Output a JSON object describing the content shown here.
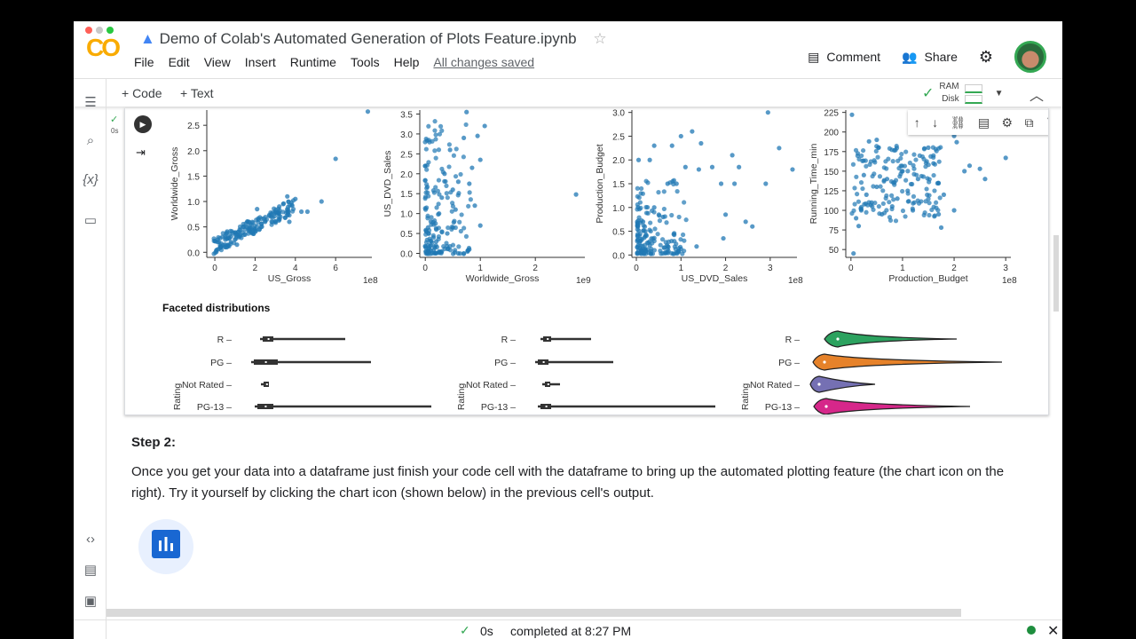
{
  "window": {
    "title": "Demo of Colab's Automated Generation of Plots Feature.ipynb"
  },
  "menu": [
    "File",
    "Edit",
    "View",
    "Insert",
    "Runtime",
    "Tools",
    "Help"
  ],
  "saved_status": "All changes saved",
  "header": {
    "comment": "Comment",
    "share": "Share"
  },
  "toolbar": {
    "add_code": "+ Code",
    "add_text": "+ Text",
    "ram": "RAM",
    "disk": "Disk"
  },
  "cell": {
    "exec_time": "0s"
  },
  "section_title": "Faceted distributions",
  "chart_data": [
    {
      "type": "scatter",
      "xlabel": "US_Gross",
      "ylabel": "Worldwide_Gross",
      "x_offset_label": "1e8",
      "xticks": [
        0,
        2,
        4,
        6
      ],
      "yticks": [
        0.0,
        0.5,
        1.0,
        1.5,
        2.0,
        2.5
      ],
      "xlim": [
        -0.4,
        7.8
      ],
      "ylim": [
        -0.1,
        2.8
      ],
      "points": [
        [
          0.1,
          0.05
        ],
        [
          0.3,
          0.1
        ],
        [
          0.5,
          0.15
        ],
        [
          0.8,
          0.2
        ],
        [
          1,
          0.25
        ],
        [
          1.2,
          0.3
        ],
        [
          1.5,
          0.35
        ],
        [
          1.8,
          0.4
        ],
        [
          2,
          0.45
        ],
        [
          2.3,
          0.5
        ],
        [
          2.5,
          0.6
        ],
        [
          2.8,
          0.7
        ],
        [
          3,
          0.8
        ],
        [
          3.2,
          0.9
        ],
        [
          3.4,
          0.95
        ],
        [
          3.6,
          1.1
        ],
        [
          4,
          1.05
        ],
        [
          4.3,
          0.8
        ],
        [
          4.6,
          0.8
        ],
        [
          5.3,
          1.0
        ],
        [
          6,
          1.84
        ],
        [
          7.6,
          2.77
        ],
        [
          0.2,
          0.2
        ],
        [
          0.6,
          0.1
        ],
        [
          1.4,
          0.5
        ],
        [
          2.1,
          0.85
        ],
        [
          1.1,
          0.15
        ],
        [
          3.7,
          0.6
        ]
      ]
    },
    {
      "type": "scatter",
      "xlabel": "Worldwide_Gross",
      "ylabel": "US_DVD_Sales",
      "x_offset_label": "1e9",
      "xticks": [
        0,
        1,
        2
      ],
      "yticks": [
        0.0,
        0.5,
        1.0,
        1.5,
        2.0,
        2.5,
        3.0,
        3.5
      ],
      "xlim": [
        -0.1,
        2.9
      ],
      "ylim": [
        -0.1,
        3.6
      ],
      "points": [
        [
          0.05,
          0.05
        ],
        [
          0.1,
          0.2
        ],
        [
          0.15,
          0.4
        ],
        [
          0.2,
          0.6
        ],
        [
          0.1,
          0.8
        ],
        [
          0.25,
          1.0
        ],
        [
          0.3,
          1.4
        ],
        [
          0.35,
          2.0
        ],
        [
          0.45,
          2.6
        ],
        [
          0.5,
          1.6
        ],
        [
          0.6,
          1.8
        ],
        [
          0.7,
          2.9
        ],
        [
          0.75,
          3.55
        ],
        [
          0.8,
          1.75
        ],
        [
          0.85,
          2.15
        ],
        [
          0.95,
          2.95
        ],
        [
          1.0,
          2.35
        ],
        [
          1.08,
          3.2
        ],
        [
          0.9,
          1.2
        ],
        [
          1.0,
          0.7
        ],
        [
          0.8,
          0.1
        ],
        [
          0.6,
          0.0
        ],
        [
          0.4,
          0.5
        ],
        [
          0.2,
          0.3
        ],
        [
          0.05,
          0.65
        ],
        [
          2.74,
          1.48
        ],
        [
          0.55,
          1.1
        ],
        [
          0.3,
          0.05
        ]
      ]
    },
    {
      "type": "scatter",
      "xlabel": "US_DVD_Sales",
      "ylabel": "Production_Budget",
      "x_offset_label": "1e8",
      "xticks": [
        0,
        1,
        2,
        3
      ],
      "yticks": [
        0.0,
        0.5,
        1.0,
        1.5,
        2.0,
        2.5,
        3.0
      ],
      "xlim": [
        -0.1,
        3.6
      ],
      "ylim": [
        -0.05,
        3.05
      ],
      "points": [
        [
          0.05,
          0.1
        ],
        [
          0.1,
          0.3
        ],
        [
          0.2,
          0.5
        ],
        [
          0.3,
          0.2
        ],
        [
          0.15,
          0.7
        ],
        [
          0.4,
          1.0
        ],
        [
          0.05,
          2.0
        ],
        [
          0.3,
          2.0
        ],
        [
          0.4,
          2.3
        ],
        [
          0.8,
          2.3
        ],
        [
          1.0,
          2.5
        ],
        [
          1.25,
          2.6
        ],
        [
          1.45,
          2.35
        ],
        [
          0.7,
          1.5
        ],
        [
          0.9,
          1.5
        ],
        [
          1.1,
          1.85
        ],
        [
          1.4,
          1.8
        ],
        [
          1.7,
          1.85
        ],
        [
          2.15,
          2.1
        ],
        [
          2.3,
          1.85
        ],
        [
          2.2,
          1.5
        ],
        [
          1.9,
          1.5
        ],
        [
          2.95,
          3.0
        ],
        [
          3.2,
          2.25
        ],
        [
          3.5,
          1.8
        ],
        [
          2.9,
          1.5
        ],
        [
          2.0,
          0.85
        ],
        [
          2.45,
          0.7
        ],
        [
          2.6,
          0.6
        ],
        [
          1.95,
          0.35
        ],
        [
          1.35,
          0.18
        ],
        [
          0.9,
          0.05
        ],
        [
          0.6,
          0.8
        ]
      ]
    },
    {
      "type": "scatter",
      "xlabel": "Production_Budget",
      "ylabel": "Running_Time_min",
      "x_offset_label": "1e8",
      "xticks": [
        0,
        1,
        2,
        3
      ],
      "yticks": [
        50,
        75,
        100,
        125,
        150,
        175,
        200,
        225
      ],
      "xlim": [
        -0.1,
        3.1
      ],
      "ylim": [
        40,
        228
      ],
      "points": [
        [
          0.02,
          222
        ],
        [
          0.05,
          45
        ],
        [
          0.1,
          90
        ],
        [
          0.2,
          100
        ],
        [
          0.3,
          120
        ],
        [
          0.4,
          110
        ],
        [
          0.5,
          130
        ],
        [
          0.6,
          95
        ],
        [
          0.7,
          140
        ],
        [
          0.8,
          105
        ],
        [
          0.9,
          115
        ],
        [
          1.0,
          150
        ],
        [
          1.1,
          125
        ],
        [
          1.2,
          100
        ],
        [
          1.3,
          140
        ],
        [
          1.5,
          180
        ],
        [
          1.6,
          160
        ],
        [
          1.8,
          120
        ],
        [
          2.0,
          195
        ],
        [
          2.05,
          187
        ],
        [
          2.0,
          100
        ],
        [
          2.2,
          150
        ],
        [
          2.3,
          157
        ],
        [
          2.5,
          153
        ],
        [
          2.6,
          140
        ],
        [
          3.0,
          167
        ],
        [
          0.5,
          190
        ],
        [
          0.35,
          188
        ],
        [
          1.7,
          95
        ],
        [
          1.75,
          78
        ],
        [
          0.15,
          80
        ],
        [
          0.25,
          145
        ]
      ]
    }
  ],
  "violins": {
    "ylabel": "Rating",
    "categories": [
      "R",
      "PG",
      "Not Rated",
      "PG-13"
    ],
    "colors": [
      "#2ca25f",
      "#e6822a",
      "#7570b3",
      "#d6278a"
    ]
  },
  "step": {
    "title": "Step 2:",
    "text": "Once you get your data into a dataframe just finish your code cell with the dataframe to bring up the automated plotting feature (the chart icon on the right). Try it yourself by clicking the chart icon (shown below) in the previous cell's output."
  },
  "statusbar": {
    "time": "0s",
    "completed": "completed at 8:27 PM"
  },
  "colors": {
    "point": "#1f77b4",
    "accent": "#1967d2",
    "ok": "#34a853"
  }
}
